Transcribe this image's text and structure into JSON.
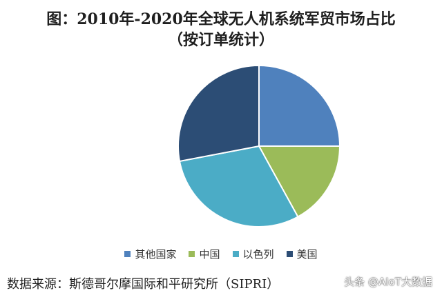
{
  "chart_data": {
    "type": "pie",
    "title": "图：2010年-2020年全球无人机系统军贸市场占比",
    "subtitle": "（按订单统计）",
    "slices": [
      {
        "label": "其他国家",
        "value": 25,
        "color": "#4f81bd"
      },
      {
        "label": "中国",
        "value": 17,
        "color": "#9bbb59"
      },
      {
        "label": "以色列",
        "value": 30,
        "color": "#4bacc6"
      },
      {
        "label": "美国",
        "value": 28,
        "color": "#2c4d75"
      }
    ],
    "legend_position": "bottom"
  },
  "footer": {
    "source": "数据来源：斯德哥尔摩国际和平研究所（SIPRI）",
    "watermark": "头条 @AIoT大数据"
  }
}
